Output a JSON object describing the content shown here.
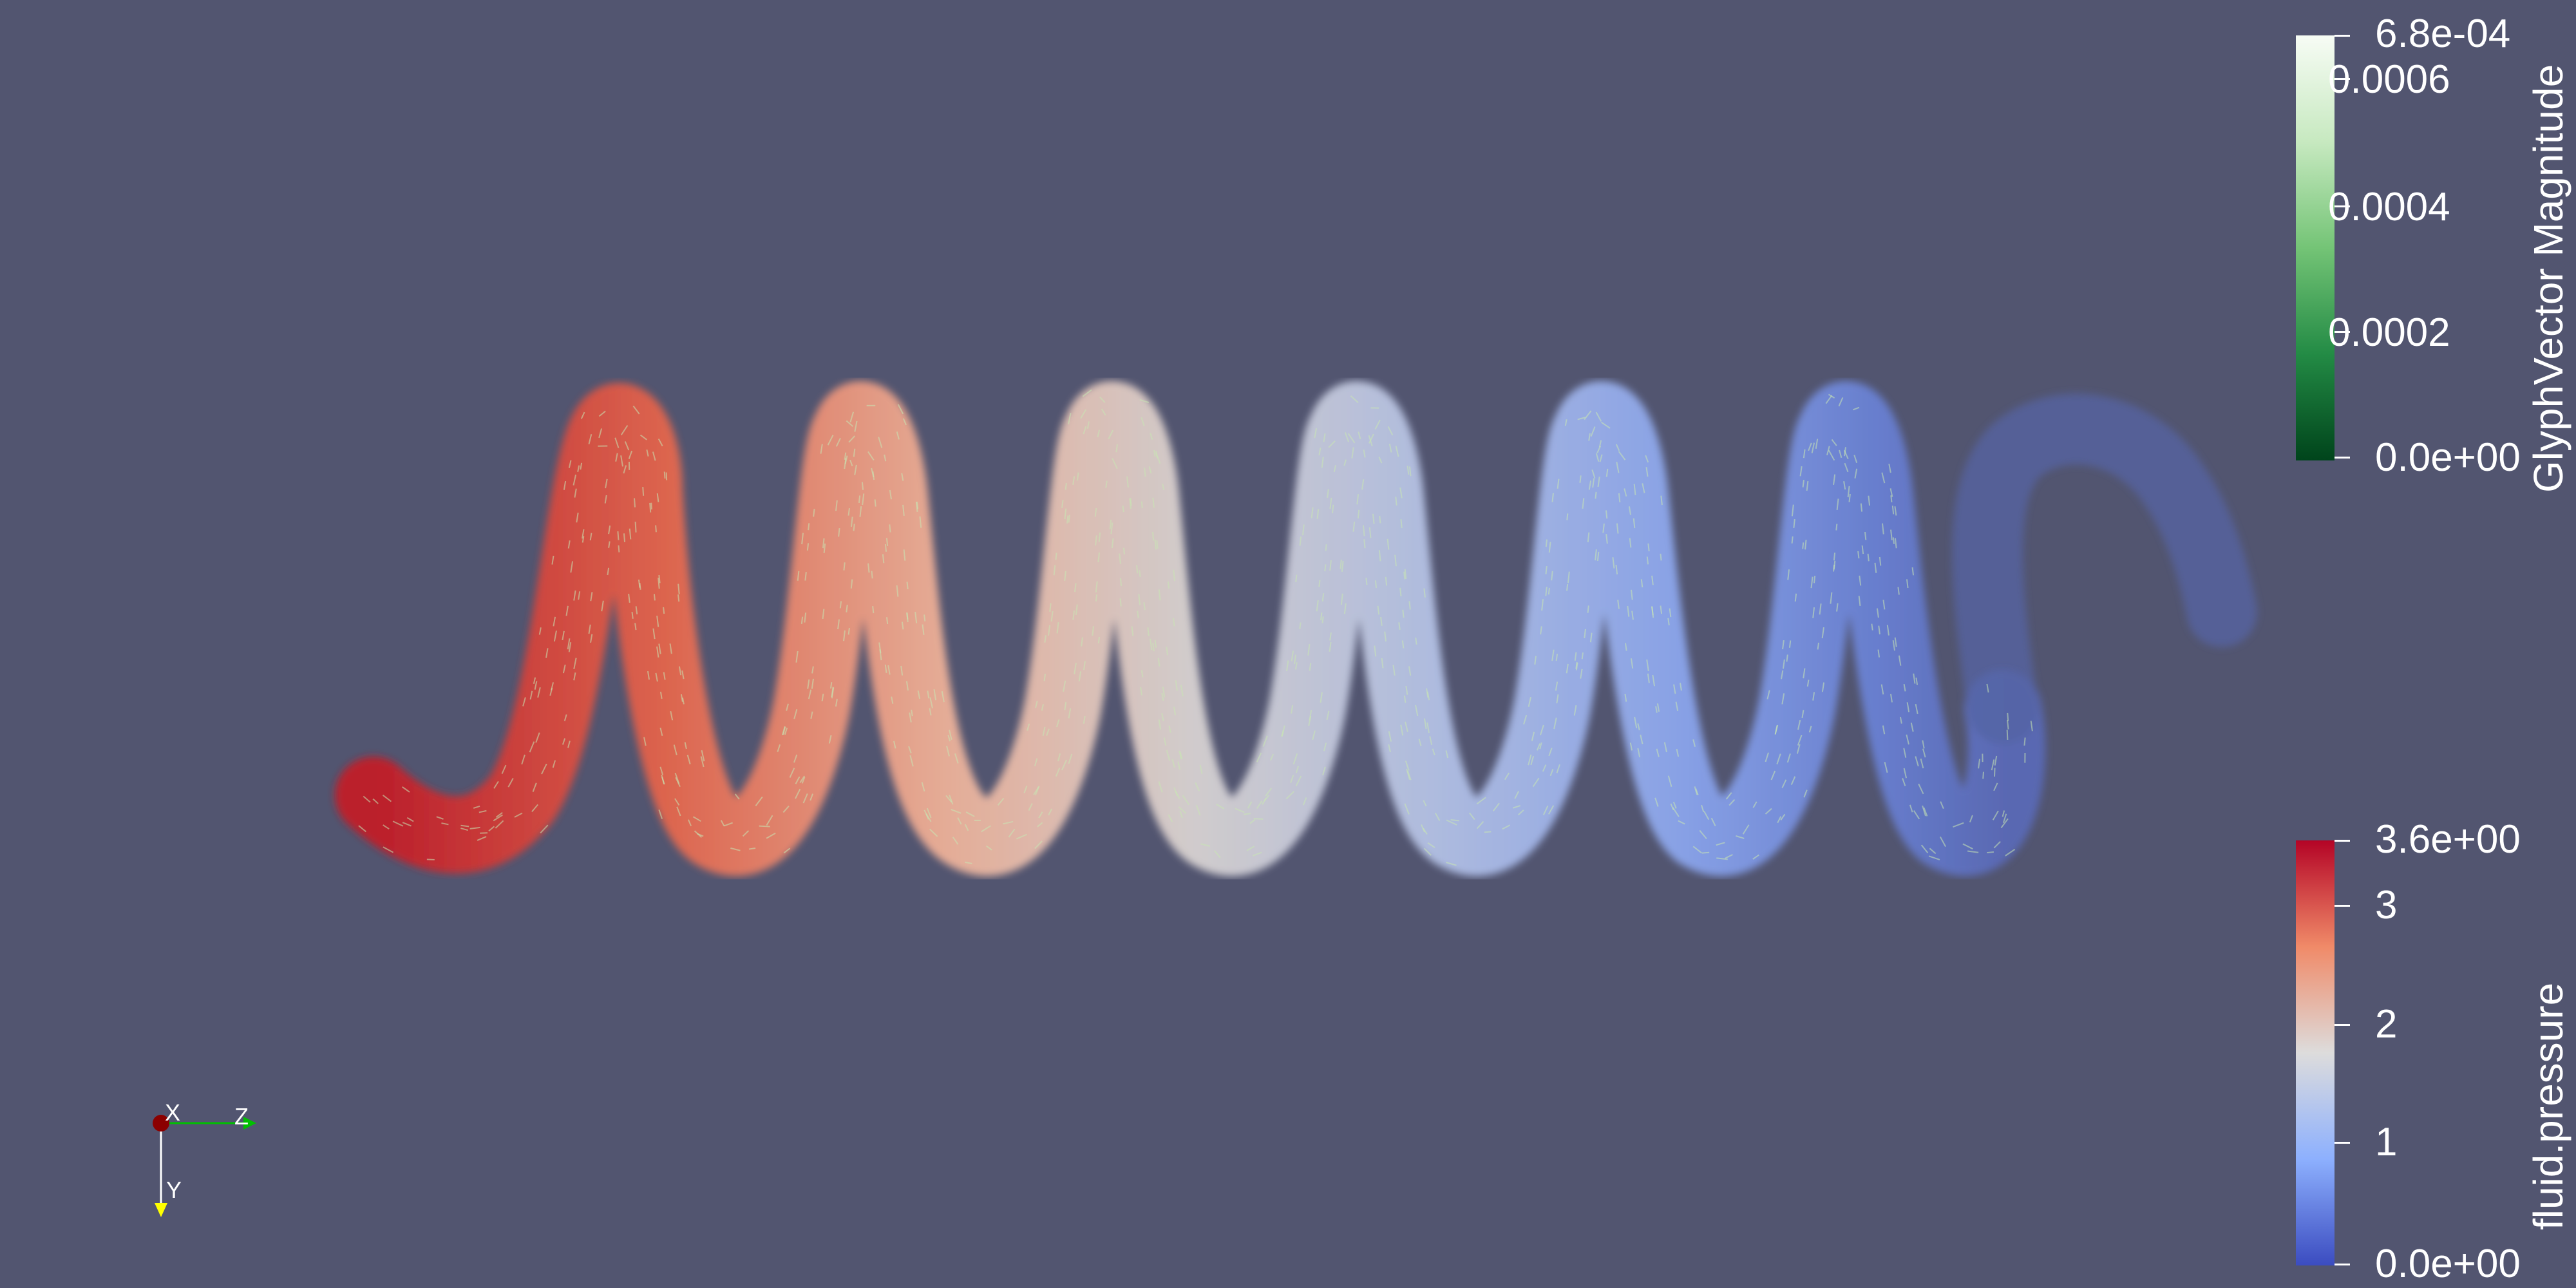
{
  "scene": {
    "background_color": "#525570",
    "pressure_color_start": "#c8102e",
    "pressure_color_end": "#4b63c8",
    "glyph_color": "#c9e6b4"
  },
  "glyph_colorbar": {
    "title": "GlyphVector Magnitude",
    "max_label": "6.8e-04",
    "min_label": "0.0e+00",
    "ticks": [
      "0.0006",
      "0.0004",
      "0.0002"
    ],
    "tick_values": [
      0.0006,
      0.0004,
      0.0002
    ],
    "range": [
      0,
      0.00068
    ],
    "colors": [
      "#f7fcf5",
      "#c7e9c0",
      "#74c476",
      "#238b45",
      "#00441b"
    ]
  },
  "pressure_colorbar": {
    "title": "fluid.pressure",
    "max_label": "3.6e+00",
    "min_label": "0.0e+00",
    "ticks": [
      "3",
      "2",
      "1"
    ],
    "tick_values": [
      3,
      2,
      1
    ],
    "range": [
      0,
      3.6
    ],
    "colors": [
      "#b40426",
      "#f08a68",
      "#dddcdc",
      "#8db0fe",
      "#3b4cc0"
    ]
  },
  "axes": {
    "x_label": "X",
    "y_label": "Y",
    "z_label": "Z",
    "x_color": "#8b0000",
    "y_color": "#ffff00",
    "z_color": "#00c000"
  }
}
